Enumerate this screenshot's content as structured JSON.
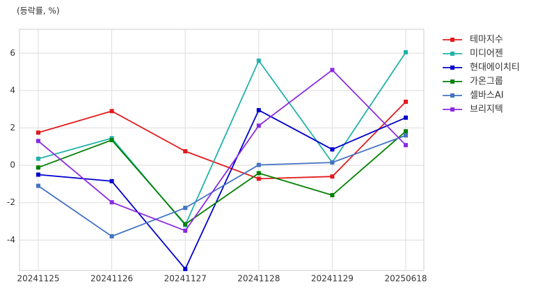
{
  "chart_data": {
    "type": "line",
    "title": "(등락률, %)",
    "categories": [
      "20241125",
      "20241126",
      "20241127",
      "20241128",
      "20241129",
      "20250618"
    ],
    "series": [
      {
        "name": "테마지수",
        "color": "#e31a1c",
        "values": [
          1.75,
          2.9,
          0.75,
          -0.72,
          -0.6,
          3.4
        ]
      },
      {
        "name": "미디어젠",
        "color": "#20b2aa",
        "values": [
          0.35,
          1.45,
          -3.2,
          5.6,
          0.15,
          6.05
        ]
      },
      {
        "name": "현대에이치티",
        "color": "#0000cd",
        "values": [
          -0.5,
          -0.85,
          -5.55,
          2.95,
          0.85,
          2.55
        ]
      },
      {
        "name": "가온그룹",
        "color": "#008000",
        "values": [
          -0.12,
          1.35,
          -3.15,
          -0.42,
          -1.6,
          1.82
        ]
      },
      {
        "name": "셀바스AI",
        "color": "#4472c4",
        "values": [
          -1.1,
          -3.8,
          -2.28,
          0.02,
          0.15,
          1.6
        ]
      },
      {
        "name": "브리지텍",
        "color": "#8a2be2",
        "values": [
          1.3,
          -1.98,
          -3.5,
          2.12,
          5.1,
          1.08
        ]
      }
    ],
    "ylim": [
      -5.63,
      7.28
    ],
    "yticks": [
      -4,
      -2,
      0,
      2,
      4,
      6
    ],
    "grid": true,
    "legend": "outside-right"
  }
}
